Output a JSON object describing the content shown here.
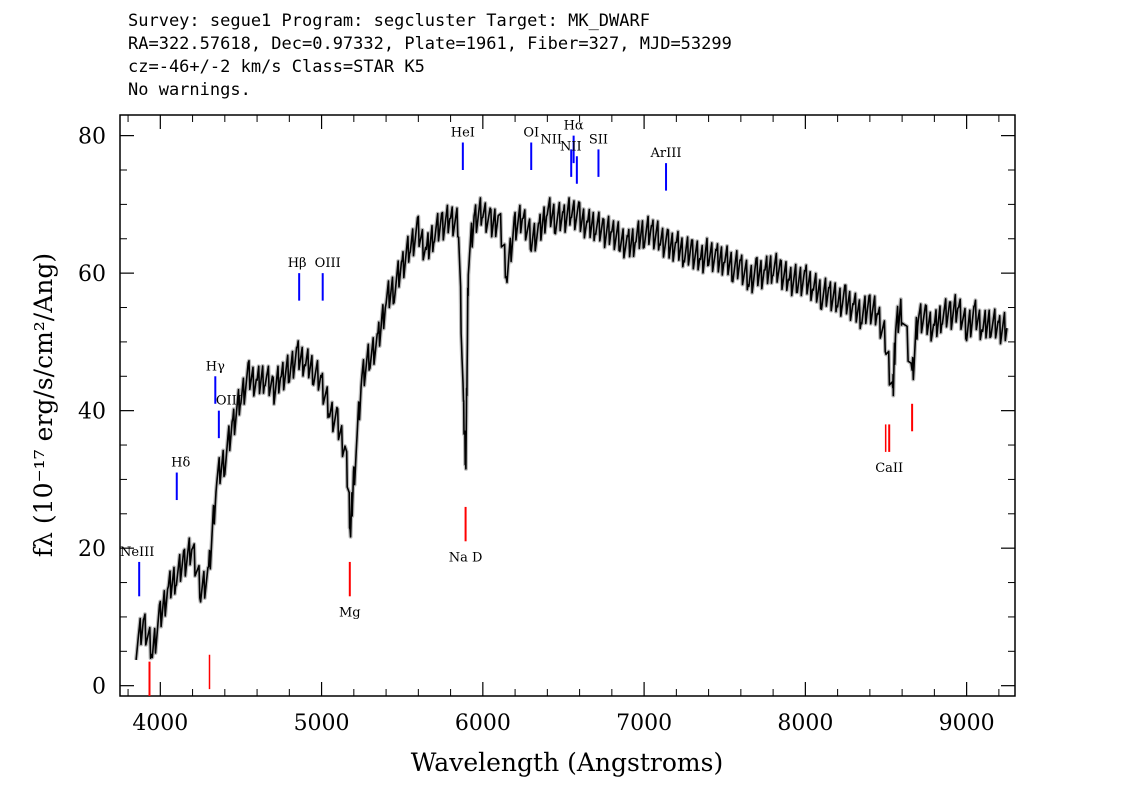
{
  "header": {
    "line1": "Survey: segue1 Program: segcluster Target: MK_DWARF",
    "line2": "RA=322.57618, Dec=0.97332, Plate=1961, Fiber=327, MJD=53299",
    "line3": "cz=-46+/-2 km/s Class=STAR K5",
    "line4": "No warnings."
  },
  "chart_data": {
    "type": "line",
    "xlabel": "Wavelength (Angstroms)",
    "ylabel": "fλ (10⁻¹⁷ erg/s/cm²/Ang)",
    "xlim": [
      3750,
      9300
    ],
    "ylim": [
      -1.5,
      83
    ],
    "x_ticks": [
      4000,
      5000,
      6000,
      7000,
      8000,
      9000
    ],
    "y_ticks": [
      0,
      20,
      40,
      60,
      80
    ],
    "colors": {
      "spectrum": "#000000",
      "error": "#bbbbbb",
      "emission": "#0000ff",
      "absorption": "#ff0000"
    },
    "series": [
      {
        "x": [
          3850,
          3900,
          3950,
          4000,
          4050,
          4100,
          4150,
          4200,
          4250,
          4300,
          4350,
          4400,
          4450,
          4500,
          4550,
          4600,
          4650,
          4700,
          4750,
          4800,
          4850,
          4900,
          4950,
          5000,
          5050,
          5100,
          5150,
          5180,
          5200,
          5250,
          5300,
          5350,
          5400,
          5450,
          5500,
          5550,
          5600,
          5650,
          5700,
          5750,
          5800,
          5850,
          5880,
          5895,
          5910,
          5950,
          6000,
          6050,
          6100,
          6150,
          6200,
          6250,
          6300,
          6350,
          6400,
          6450,
          6500,
          6550,
          6600,
          6650,
          6700,
          6750,
          6800,
          6850,
          6900,
          6950,
          7000,
          7050,
          7100,
          7150,
          7200,
          7250,
          7300,
          7350,
          7400,
          7450,
          7500,
          7550,
          7600,
          7650,
          7700,
          7750,
          7800,
          7850,
          7900,
          7950,
          8000,
          8050,
          8100,
          8150,
          8200,
          8250,
          8300,
          8350,
          8400,
          8450,
          8500,
          8542,
          8560,
          8600,
          8662,
          8700,
          8750,
          8800,
          8850,
          8900,
          8950,
          9000,
          9050,
          9100,
          9150,
          9200,
          9250
        ],
        "y": [
          6,
          9,
          5,
          10,
          14,
          16,
          18,
          20,
          14,
          16,
          30,
          33,
          38,
          42,
          45,
          44,
          45,
          43,
          45,
          46,
          48,
          47,
          46,
          44,
          40,
          38,
          34,
          23,
          30,
          45,
          48,
          50,
          56,
          58,
          61,
          64,
          66,
          63,
          66,
          67,
          68,
          67,
          40,
          32,
          62,
          68,
          69,
          67,
          68,
          60,
          67,
          68,
          65,
          66,
          69,
          68,
          68,
          69,
          68,
          67,
          67,
          66,
          66,
          65,
          64,
          65,
          66,
          66,
          65,
          64,
          64,
          63,
          63,
          62,
          63,
          62,
          62,
          61,
          61,
          59,
          60,
          60,
          61,
          60,
          59,
          59,
          59,
          58,
          57,
          57,
          56,
          56,
          55,
          54,
          55,
          54,
          50,
          42,
          52,
          55,
          45,
          54,
          53,
          52,
          54,
          54,
          55,
          52,
          54,
          52,
          53,
          52,
          52
        ]
      }
    ],
    "emission_lines": [
      {
        "label": "NeIII",
        "x": 3869
      },
      {
        "label": "Hδ",
        "x": 4102
      },
      {
        "label": "Hγ",
        "x": 4341
      },
      {
        "label": "OIII",
        "x": 4363
      },
      {
        "label": "Hβ",
        "x": 4861
      },
      {
        "label": "OIII",
        "x": 5007
      },
      {
        "label": "HeI",
        "x": 5876
      },
      {
        "label": "OI",
        "x": 6300
      },
      {
        "label": "NII",
        "x": 6583
      },
      {
        "label": "Hα",
        "x": 6563
      },
      {
        "label": "NII",
        "x": 6548
      },
      {
        "label": "SII",
        "x": 6717
      },
      {
        "label": "ArIII",
        "x": 7136
      }
    ],
    "absorption_lines": [
      {
        "label": "Mg",
        "x": 5175
      },
      {
        "label": "Na D",
        "x": 5893
      },
      {
        "label": "CaII",
        "x": 8520
      },
      {
        "label": "CaII",
        "x": 8662
      }
    ]
  }
}
